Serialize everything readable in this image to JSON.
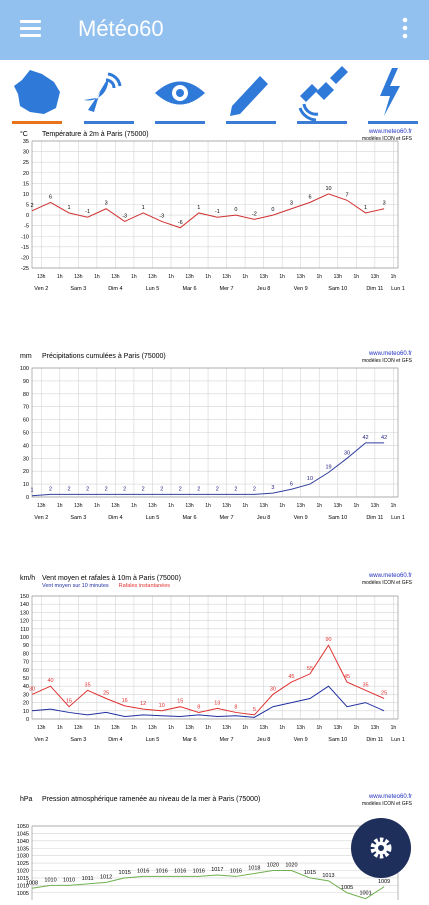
{
  "header": {
    "title": "Météo60"
  },
  "chart_data": [
    {
      "type": "line",
      "title": "Température à 2m à Paris (75000)",
      "unit": "°C",
      "source": "www.meteo60.fr",
      "models": "modèles ICON et GFS",
      "x": [
        0,
        12,
        24,
        36,
        48,
        60,
        72,
        84,
        96,
        108,
        120,
        132,
        144,
        156,
        168,
        180,
        192,
        204,
        216,
        228
      ],
      "series": [
        {
          "color": "#d03030",
          "label_color": "#000000",
          "data_labels": true,
          "values": [
            2,
            6,
            1,
            -1,
            3,
            -3,
            1,
            -3,
            -6,
            1,
            -1,
            0,
            -2,
            0,
            3,
            6,
            10,
            7,
            1,
            3
          ]
        }
      ],
      "xlim": [
        0,
        237
      ],
      "ylim": [
        -25,
        35
      ],
      "yticks": [
        -25,
        -20,
        -15,
        -10,
        -5,
        0,
        5,
        10,
        15,
        20,
        25,
        30,
        35
      ],
      "grid": true,
      "xticks": [
        {
          "value": 6,
          "label": "13h"
        },
        {
          "value": 18,
          "label": "1h"
        },
        {
          "value": 30,
          "label": "13h"
        },
        {
          "value": 42,
          "label": "1h"
        },
        {
          "value": 54,
          "label": "13h"
        },
        {
          "value": 66,
          "label": "1h"
        },
        {
          "value": 78,
          "label": "13h"
        },
        {
          "value": 90,
          "label": "1h"
        },
        {
          "value": 102,
          "label": "13h"
        },
        {
          "value": 114,
          "label": "1h"
        },
        {
          "value": 126,
          "label": "13h"
        },
        {
          "value": 138,
          "label": "1h"
        },
        {
          "value": 150,
          "label": "13h"
        },
        {
          "value": 162,
          "label": "1h"
        },
        {
          "value": 174,
          "label": "13h"
        },
        {
          "value": 186,
          "label": "1h"
        },
        {
          "value": 198,
          "label": "13h"
        },
        {
          "value": 210,
          "label": "1h"
        },
        {
          "value": 222,
          "label": "13h"
        },
        {
          "value": 234,
          "label": "1h"
        }
      ],
      "day_labels": [
        {
          "value": 6,
          "label": "Ven 2"
        },
        {
          "value": 30,
          "label": "Sam 3"
        },
        {
          "value": 54,
          "label": "Dim 4"
        },
        {
          "value": 78,
          "label": "Lun 5"
        },
        {
          "value": 102,
          "label": "Mar 6"
        },
        {
          "value": 126,
          "label": "Mer 7"
        },
        {
          "value": 150,
          "label": "Jeu 8"
        },
        {
          "value": 174,
          "label": "Ven 9"
        },
        {
          "value": 198,
          "label": "Sam 10"
        },
        {
          "value": 222,
          "label": "Dim 11"
        },
        {
          "value": 237,
          "label": "Lun 1"
        }
      ]
    },
    {
      "type": "line",
      "title": "Précipitations cumulées à Paris (75000)",
      "unit": "mm",
      "source": "www.meteo60.fr",
      "models": "modèles ICON et GFS",
      "x": [
        0,
        12,
        24,
        36,
        48,
        60,
        72,
        84,
        96,
        108,
        120,
        132,
        144,
        156,
        168,
        180,
        192,
        204,
        216,
        228
      ],
      "series": [
        {
          "color": "#3040a0",
          "label_color": "#202080",
          "data_labels": true,
          "values": [
            1,
            2,
            2,
            2,
            2,
            2,
            2,
            2,
            2,
            2,
            2,
            2,
            2,
            3,
            6,
            10,
            19,
            30,
            42,
            42
          ]
        }
      ],
      "xlim": [
        0,
        237
      ],
      "ylim": [
        0,
        100
      ],
      "yticks": [
        0,
        10,
        20,
        30,
        40,
        50,
        60,
        70,
        80,
        90,
        100
      ],
      "grid": true,
      "xticks": [
        {
          "value": 6,
          "label": "13h"
        },
        {
          "value": 18,
          "label": "1h"
        },
        {
          "value": 30,
          "label": "13h"
        },
        {
          "value": 42,
          "label": "1h"
        },
        {
          "value": 54,
          "label": "13h"
        },
        {
          "value": 66,
          "label": "1h"
        },
        {
          "value": 78,
          "label": "13h"
        },
        {
          "value": 90,
          "label": "1h"
        },
        {
          "value": 102,
          "label": "13h"
        },
        {
          "value": 114,
          "label": "1h"
        },
        {
          "value": 126,
          "label": "13h"
        },
        {
          "value": 138,
          "label": "1h"
        },
        {
          "value": 150,
          "label": "13h"
        },
        {
          "value": 162,
          "label": "1h"
        },
        {
          "value": 174,
          "label": "13h"
        },
        {
          "value": 186,
          "label": "1h"
        },
        {
          "value": 198,
          "label": "13h"
        },
        {
          "value": 210,
          "label": "1h"
        },
        {
          "value": 222,
          "label": "13h"
        },
        {
          "value": 234,
          "label": "1h"
        }
      ],
      "day_labels": [
        {
          "value": 6,
          "label": "Ven 2"
        },
        {
          "value": 30,
          "label": "Sam 3"
        },
        {
          "value": 54,
          "label": "Dim 4"
        },
        {
          "value": 78,
          "label": "Lun 5"
        },
        {
          "value": 102,
          "label": "Mar 6"
        },
        {
          "value": 126,
          "label": "Mer 7"
        },
        {
          "value": 150,
          "label": "Jeu 8"
        },
        {
          "value": 174,
          "label": "Ven 9"
        },
        {
          "value": 198,
          "label": "Sam 10"
        },
        {
          "value": 222,
          "label": "Dim 11"
        },
        {
          "value": 237,
          "label": "Lun 1"
        }
      ]
    },
    {
      "type": "line",
      "title": "Vent moyen et rafales à 10m à Paris (75000)",
      "unit": "km/h",
      "source": "www.meteo60.fr",
      "models": "modèles ICON et GFS",
      "x": [
        0,
        12,
        24,
        36,
        48,
        60,
        72,
        84,
        96,
        108,
        120,
        132,
        144,
        156,
        168,
        180,
        192,
        204,
        216,
        228
      ],
      "series": [
        {
          "name": "Vent moyen sur 10 minutes",
          "color": "#2030a0",
          "data_labels": false,
          "values": [
            10,
            12,
            8,
            5,
            8,
            3,
            5,
            4,
            3,
            5,
            3,
            4,
            2,
            15,
            20,
            25,
            40,
            15,
            20,
            10
          ]
        },
        {
          "name": "Rafales instantanées",
          "color": "#e03030",
          "label_color": "#e03030",
          "data_labels": true,
          "values": [
            30,
            40,
            15,
            35,
            25,
            16,
            12,
            10,
            15,
            8,
            13,
            8,
            5,
            30,
            45,
            55,
            90,
            45,
            35,
            25
          ]
        }
      ],
      "xlim": [
        0,
        237
      ],
      "ylim": [
        0,
        150
      ],
      "yticks": [
        0,
        10,
        20,
        30,
        40,
        50,
        60,
        70,
        80,
        90,
        100,
        110,
        120,
        130,
        140,
        150
      ],
      "grid": true,
      "xticks": [
        {
          "value": 6,
          "label": "13h"
        },
        {
          "value": 18,
          "label": "1h"
        },
        {
          "value": 30,
          "label": "13h"
        },
        {
          "value": 42,
          "label": "1h"
        },
        {
          "value": 54,
          "label": "13h"
        },
        {
          "value": 66,
          "label": "1h"
        },
        {
          "value": 78,
          "label": "13h"
        },
        {
          "value": 90,
          "label": "1h"
        },
        {
          "value": 102,
          "label": "13h"
        },
        {
          "value": 114,
          "label": "1h"
        },
        {
          "value": 126,
          "label": "13h"
        },
        {
          "value": 138,
          "label": "1h"
        },
        {
          "value": 150,
          "label": "13h"
        },
        {
          "value": 162,
          "label": "1h"
        },
        {
          "value": 174,
          "label": "13h"
        },
        {
          "value": 186,
          "label": "1h"
        },
        {
          "value": 198,
          "label": "13h"
        },
        {
          "value": 210,
          "label": "1h"
        },
        {
          "value": 222,
          "label": "13h"
        },
        {
          "value": 234,
          "label": "1h"
        }
      ],
      "day_labels": [
        {
          "value": 6,
          "label": "Ven 2"
        },
        {
          "value": 30,
          "label": "Sam 3"
        },
        {
          "value": 54,
          "label": "Dim 4"
        },
        {
          "value": 78,
          "label": "Lun 5"
        },
        {
          "value": 102,
          "label": "Mar 6"
        },
        {
          "value": 126,
          "label": "Mer 7"
        },
        {
          "value": 150,
          "label": "Jeu 8"
        },
        {
          "value": 174,
          "label": "Ven 9"
        },
        {
          "value": 198,
          "label": "Sam 10"
        },
        {
          "value": 222,
          "label": "Dim 11"
        },
        {
          "value": 237,
          "label": "Lun 1"
        }
      ]
    },
    {
      "type": "line",
      "title": "Pression atmosphérique ramenée au niveau de la mer à Paris (75000)",
      "unit": "hPa",
      "source": "www.meteo60.fr",
      "models": "modèles ICON et GFS",
      "x": [
        0,
        12,
        24,
        36,
        48,
        60,
        72,
        84,
        96,
        108,
        120,
        132,
        144,
        156,
        168,
        180,
        192,
        204,
        216,
        228
      ],
      "series": [
        {
          "color": "#70b050",
          "label_color": "#000000",
          "data_labels": true,
          "values": [
            1008,
            1010,
            1010,
            1011,
            1012,
            1015,
            1016,
            1016,
            1016,
            1016,
            1017,
            1016,
            1018,
            1020,
            1020,
            1015,
            1013,
            1005,
            1001,
            1009
          ]
        }
      ],
      "xlim": [
        0,
        237
      ],
      "ylim": [
        990,
        1050
      ],
      "yticks": [
        1005,
        1010,
        1015,
        1020,
        1025,
        1030,
        1035,
        1040,
        1045,
        1050
      ],
      "grid": true
    }
  ]
}
